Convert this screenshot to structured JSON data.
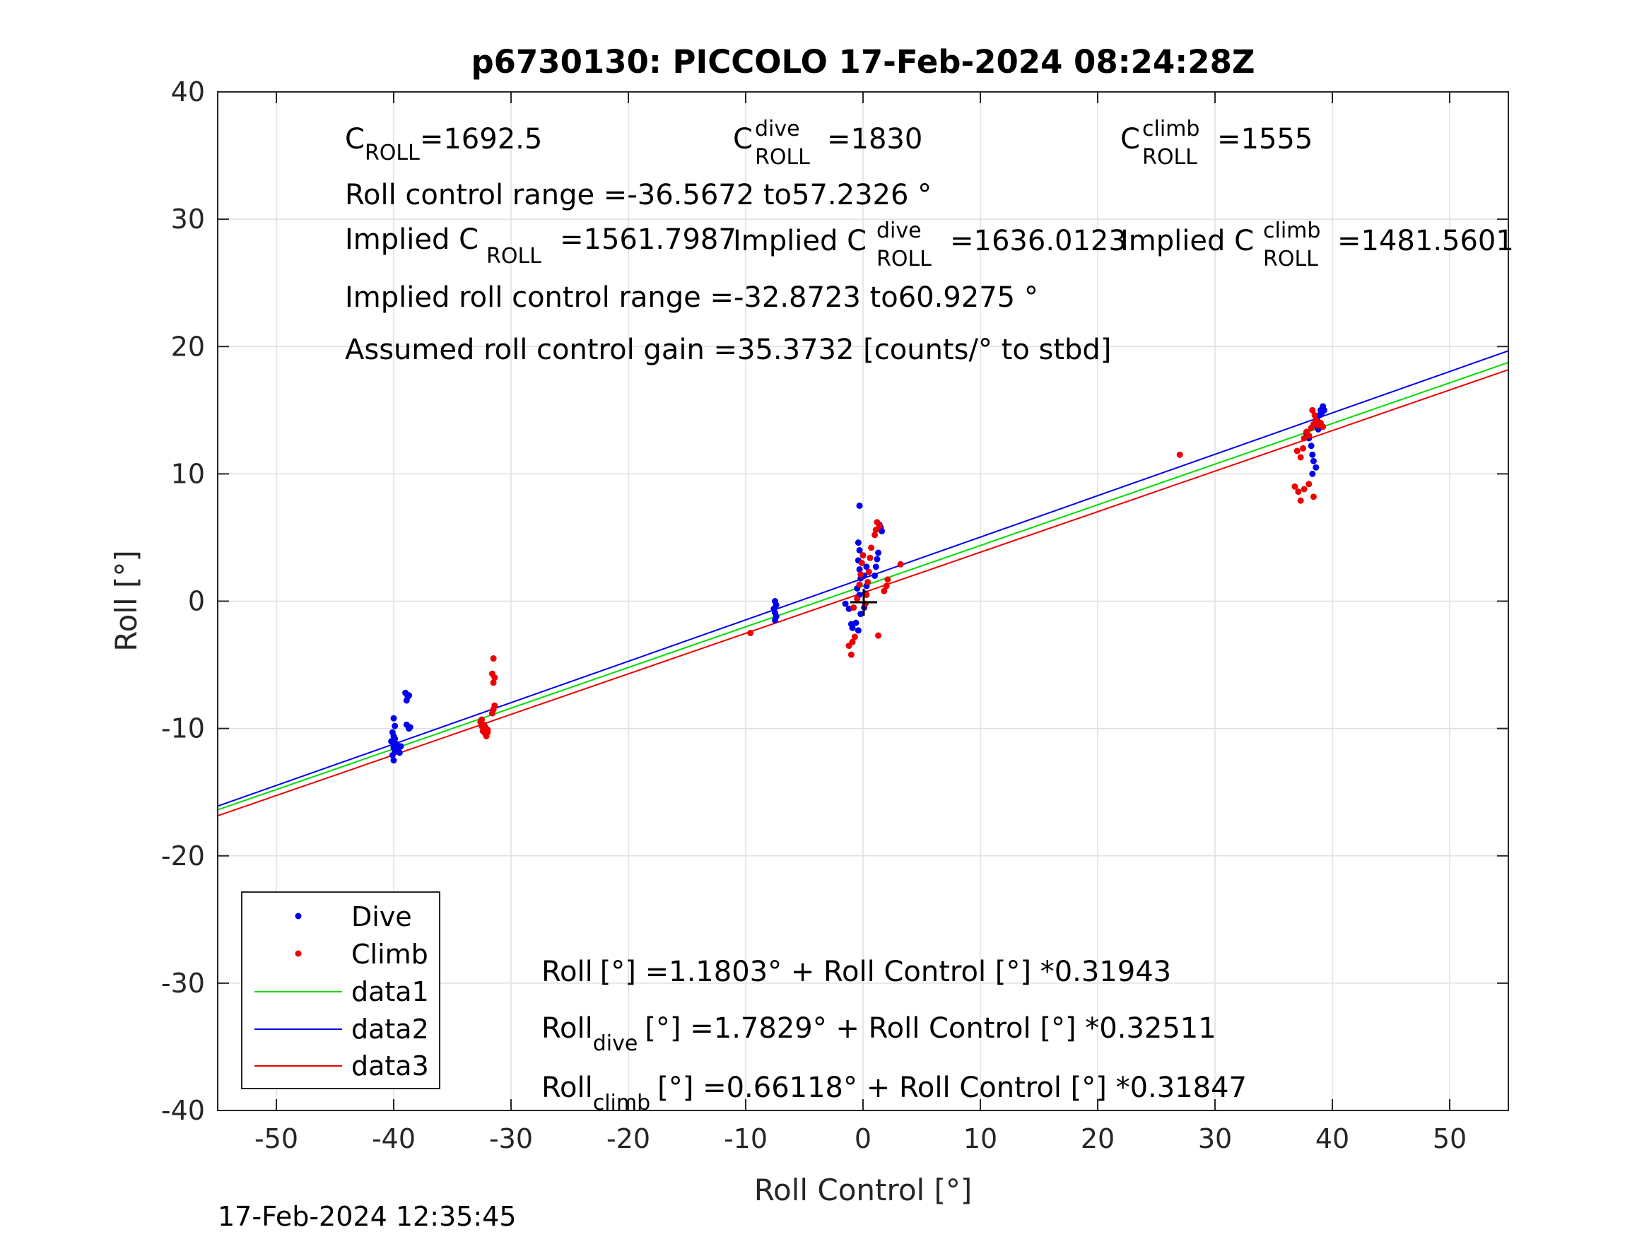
{
  "timestamp": "17-Feb-2024 12:35:45",
  "chart_data": {
    "type": "scatter",
    "title": "p6730130: PICCOLO 17-Feb-2024 08:24:28Z",
    "xlabel": "Roll Control [°]",
    "ylabel": "Roll [°]",
    "xlim": [
      -55,
      55
    ],
    "ylim": [
      -40,
      40
    ],
    "xticks": [
      -50,
      -40,
      -30,
      -20,
      -10,
      0,
      10,
      20,
      30,
      40,
      50
    ],
    "yticks": [
      -40,
      -30,
      -20,
      -10,
      0,
      10,
      20,
      30,
      40
    ],
    "grid": true,
    "legend_position": "bottom-left",
    "annotations": {
      "c_roll": {
        "base": "C",
        "sub": "ROLL",
        "value": "=1692.5"
      },
      "c_roll_dive": {
        "base": "C",
        "sup": "dive",
        "sub": "ROLL",
        "value": "=1830"
      },
      "c_roll_climb": {
        "base": "C",
        "sup": "climb",
        "sub": "ROLL",
        "value": "=1555"
      },
      "roll_control_range": "Roll control range =-36.5672 to57.2326 °",
      "implied_c_roll": {
        "base": "Implied C",
        "sub": "ROLL",
        "value": "=1561.7987"
      },
      "implied_c_roll_dive": {
        "base": "Implied C",
        "sup": "dive",
        "sub": "ROLL",
        "value": "=1636.0123"
      },
      "implied_c_roll_climb": {
        "base": "Implied C",
        "sup": "climb",
        "sub": "ROLL",
        "value": "=1481.5601"
      },
      "implied_range": "Implied roll control range =-32.8723 to60.9275 °",
      "gain": "Assumed roll control gain =35.3732 [counts/° to stbd]",
      "eq_all": {
        "base": "Roll",
        "sub": "",
        "rest": "[°] =1.1803° + Roll Control [°] *0.31943"
      },
      "eq_dive": {
        "base": "Roll",
        "sub": "dive",
        "rest": "[°] =1.7829° + Roll Control [°] *0.32511"
      },
      "eq_climb": {
        "base": "Roll",
        "sub": "climb",
        "rest": "[°] =0.66118° + Roll Control [°] *0.31847"
      }
    },
    "lines": [
      {
        "name": "data1",
        "color": "#00dd00",
        "intercept": 1.1803,
        "slope": 0.31943
      },
      {
        "name": "data2",
        "color": "#0000ee",
        "intercept": 1.7829,
        "slope": 0.32511
      },
      {
        "name": "data3",
        "color": "#ee0000",
        "intercept": 0.66118,
        "slope": 0.31847
      }
    ],
    "series": [
      {
        "name": "Dive",
        "color": "#0000ee",
        "points": [
          [
            -40.0,
            -12.5
          ],
          [
            -40.1,
            -12.1
          ],
          [
            -39.9,
            -11.8
          ],
          [
            -40.0,
            -11.5
          ],
          [
            -39.8,
            -11.2
          ],
          [
            -40.2,
            -11.0
          ],
          [
            -39.9,
            -10.8
          ],
          [
            -40.0,
            -10.6
          ],
          [
            -39.7,
            -11.3
          ],
          [
            -39.6,
            -11.6
          ],
          [
            -40.1,
            -10.3
          ],
          [
            -39.9,
            -9.8
          ],
          [
            -40.0,
            -9.2
          ],
          [
            -39.5,
            -11.9
          ],
          [
            -39.4,
            -11.4
          ],
          [
            -39.0,
            -7.2
          ],
          [
            -38.8,
            -7.5
          ],
          [
            -38.9,
            -7.8
          ],
          [
            -38.7,
            -7.4
          ],
          [
            -38.9,
            -9.7
          ],
          [
            -38.7,
            -10.0
          ],
          [
            -38.6,
            -9.9
          ],
          [
            -7.5,
            0.0
          ],
          [
            -7.4,
            -0.3
          ],
          [
            -7.6,
            -0.6
          ],
          [
            -7.5,
            -0.9
          ],
          [
            -7.4,
            -1.2
          ],
          [
            -7.5,
            -1.5
          ],
          [
            -1.5,
            -0.2
          ],
          [
            -1.2,
            -0.6
          ],
          [
            -1.0,
            -1.8
          ],
          [
            -0.9,
            -2.1
          ],
          [
            -0.6,
            -1.7
          ],
          [
            -0.4,
            -2.3
          ],
          [
            -0.3,
            0.5
          ],
          [
            -0.5,
            1.0
          ],
          [
            -0.2,
            1.8
          ],
          [
            -0.3,
            2.5
          ],
          [
            -0.4,
            3.2
          ],
          [
            -0.3,
            4.0
          ],
          [
            -0.4,
            4.6
          ],
          [
            -0.3,
            7.5
          ],
          [
            -0.2,
            -1.0
          ],
          [
            0.1,
            -0.5
          ],
          [
            0.2,
            0.6
          ],
          [
            0.3,
            1.2
          ],
          [
            0.1,
            2.0
          ],
          [
            0.3,
            2.7
          ],
          [
            1.0,
            2.0
          ],
          [
            1.1,
            2.7
          ],
          [
            1.2,
            3.3
          ],
          [
            1.3,
            3.8
          ],
          [
            1.5,
            5.8
          ],
          [
            1.4,
            6.0
          ],
          [
            1.6,
            5.5
          ],
          [
            37.8,
            13.2
          ],
          [
            38.0,
            12.8
          ],
          [
            38.2,
            12.2
          ],
          [
            38.3,
            11.5
          ],
          [
            38.4,
            11.0
          ],
          [
            38.6,
            10.5
          ],
          [
            38.3,
            10.0
          ],
          [
            38.5,
            13.8
          ],
          [
            38.7,
            14.2
          ],
          [
            38.9,
            14.6
          ],
          [
            39.0,
            15.0
          ],
          [
            39.2,
            15.3
          ],
          [
            39.3,
            15.0
          ],
          [
            39.1,
            14.8
          ],
          [
            38.8,
            13.5
          ]
        ]
      },
      {
        "name": "Climb",
        "color": "#ee0000",
        "points": [
          [
            -32.6,
            -9.5
          ],
          [
            -32.5,
            -9.8
          ],
          [
            -32.3,
            -10.0
          ],
          [
            -32.4,
            -10.2
          ],
          [
            -32.2,
            -10.4
          ],
          [
            -32.1,
            -10.6
          ],
          [
            -32.0,
            -10.3
          ],
          [
            -32.3,
            -9.7
          ],
          [
            -32.5,
            -9.3
          ],
          [
            -32.2,
            -9.9
          ],
          [
            -32.0,
            -10.1
          ],
          [
            -31.5,
            -8.5
          ],
          [
            -31.4,
            -8.2
          ],
          [
            -31.6,
            -8.8
          ],
          [
            -31.5,
            -6.4
          ],
          [
            -31.4,
            -6.0
          ],
          [
            -31.6,
            -5.7
          ],
          [
            -31.5,
            -4.5
          ],
          [
            -9.6,
            -2.5
          ],
          [
            -1.2,
            -3.5
          ],
          [
            -1.0,
            -4.2
          ],
          [
            -0.9,
            -3.2
          ],
          [
            -0.7,
            -2.8
          ],
          [
            -0.8,
            -0.5
          ],
          [
            -0.5,
            0.2
          ],
          [
            -0.3,
            1.3
          ],
          [
            -0.2,
            2.1
          ],
          [
            -0.1,
            3.0
          ],
          [
            0.0,
            3.6
          ],
          [
            0.2,
            -0.2
          ],
          [
            0.3,
            0.5
          ],
          [
            0.4,
            1.5
          ],
          [
            0.5,
            2.3
          ],
          [
            0.6,
            3.4
          ],
          [
            0.7,
            4.2
          ],
          [
            1.0,
            5.2
          ],
          [
            1.1,
            5.6
          ],
          [
            1.2,
            6.2
          ],
          [
            1.4,
            5.9
          ],
          [
            1.3,
            -2.7
          ],
          [
            1.8,
            0.8
          ],
          [
            2.0,
            1.2
          ],
          [
            2.1,
            1.7
          ],
          [
            3.2,
            2.9
          ],
          [
            27.0,
            11.5
          ],
          [
            36.8,
            9.0
          ],
          [
            37.1,
            8.6
          ],
          [
            37.3,
            7.9
          ],
          [
            37.6,
            8.8
          ],
          [
            38.0,
            9.2
          ],
          [
            38.4,
            8.2
          ],
          [
            37.0,
            11.8
          ],
          [
            37.3,
            11.3
          ],
          [
            37.5,
            12.0
          ],
          [
            37.6,
            12.8
          ],
          [
            37.8,
            13.3
          ],
          [
            38.0,
            13.0
          ],
          [
            38.2,
            13.6
          ],
          [
            38.4,
            13.9
          ],
          [
            38.6,
            14.2
          ],
          [
            38.8,
            13.8
          ],
          [
            39.0,
            14.0
          ],
          [
            39.2,
            13.7
          ],
          [
            38.3,
            15.0
          ],
          [
            38.5,
            14.6
          ]
        ]
      }
    ]
  }
}
